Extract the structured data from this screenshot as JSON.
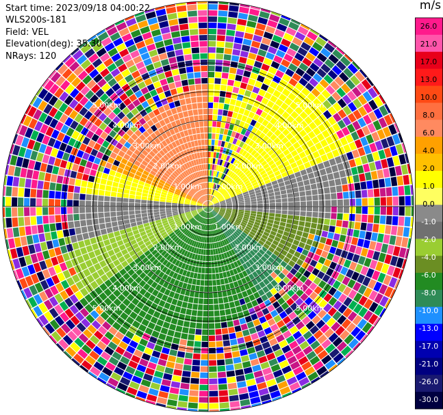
{
  "info": {
    "start_time": "Start time: 2023/09/18 04:00:22",
    "instrument": "WLS200s-181",
    "field": "Field: VEL",
    "elevation": "Elevation(deg): 35.30",
    "nrays": "NRays: 120"
  },
  "colorbar": {
    "unit": "m/s",
    "ticks": [
      "26.0",
      "21.0",
      "17.0",
      "13.0",
      "10.0",
      "8.0",
      "6.0",
      "4.0",
      "2.0",
      "1.0",
      "0.0",
      "-1.0",
      "-2.0",
      "-4.0",
      "-6.0",
      "-8.0",
      "-10.0",
      "-13.0",
      "-17.0",
      "-21.0",
      "-26.0",
      "-30.0"
    ],
    "colors": [
      "#ff1a8c",
      "#ff55aa",
      "#e8001a",
      "#ff1a1a",
      "#ff4a14",
      "#ff7040",
      "#ff8a60",
      "#ffa000",
      "#ffc000",
      "#ffff00",
      "#ffff60",
      "#8a8a8a",
      "#707070",
      "#9acd32",
      "#6b8e23",
      "#228b22",
      "#2e8b57",
      "#1e90ff",
      "#0000ff",
      "#0000b0",
      "#000080",
      "#191970",
      "#000040"
    ]
  },
  "chart_data": {
    "type": "ppi",
    "field": "VEL",
    "units": "m/s",
    "n_rays": 120,
    "elevation_deg": 35.3,
    "range_rings_km": [
      1,
      2,
      3,
      4,
      5
    ],
    "ring_labels": [
      "1.00km",
      "2.00km",
      "3.00km",
      "4.00km",
      "5.00km"
    ],
    "vmin": -30,
    "vmax": 26
  }
}
